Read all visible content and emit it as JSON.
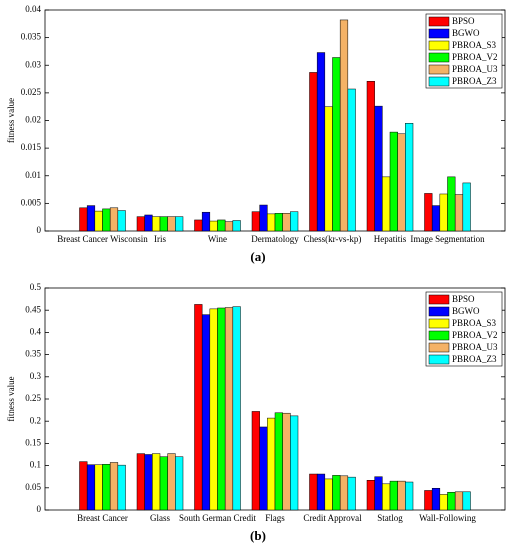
{
  "chart_data": [
    {
      "type": "bar",
      "caption": "(a)",
      "y_label": "fitness value",
      "legend": "upper right",
      "categories": [
        "Breast Cancer Wisconsin",
        "Iris",
        "Wine",
        "Dermatology",
        "Chess(kr-vs-kp)",
        "Hepatitis",
        "Image Segmentation"
      ],
      "ylim": [
        0,
        0.04
      ],
      "yticks": [
        0,
        0.005,
        0.01,
        0.015,
        0.02,
        0.025,
        0.03,
        0.035,
        0.04
      ],
      "series": [
        {
          "name": "BPSO",
          "color": "#ff0000",
          "values": [
            0.0042,
            0.0026,
            0.002,
            0.0035,
            0.0287,
            0.0271,
            0.0068
          ]
        },
        {
          "name": "BGWO",
          "color": "#0000ff",
          "values": [
            0.0046,
            0.0029,
            0.0034,
            0.0047,
            0.0323,
            0.0226,
            0.0046
          ]
        },
        {
          "name": "PBROA_S3",
          "color": "#ffff00",
          "values": [
            0.0036,
            0.0026,
            0.0018,
            0.0031,
            0.0225,
            0.0098,
            0.0067
          ]
        },
        {
          "name": "PBROA_V2",
          "color": "#00ff00",
          "values": [
            0.004,
            0.0026,
            0.002,
            0.0032,
            0.0314,
            0.0179,
            0.0098
          ]
        },
        {
          "name": "PBROA_U3",
          "color": "#f4b266",
          "values": [
            0.0042,
            0.0026,
            0.0017,
            0.0032,
            0.0382,
            0.0176,
            0.0066
          ]
        },
        {
          "name": "PBROA_Z3",
          "color": "#00ffff",
          "values": [
            0.0037,
            0.0026,
            0.0019,
            0.0035,
            0.0257,
            0.0195,
            0.0087
          ]
        }
      ]
    },
    {
      "type": "bar",
      "caption": "(b)",
      "y_label": "fitness value",
      "legend": "upper right",
      "categories": [
        "Breast Cancer",
        "Glass",
        "South German Credit",
        "Flags",
        "Credit Approval",
        "Statlog",
        "Wall-Following"
      ],
      "ylim": [
        0,
        0.5
      ],
      "yticks": [
        0,
        0.05,
        0.1,
        0.15,
        0.2,
        0.25,
        0.3,
        0.35,
        0.4,
        0.45,
        0.5
      ],
      "series": [
        {
          "name": "BPSO",
          "color": "#ff0000",
          "values": [
            0.109,
            0.127,
            0.463,
            0.222,
            0.081,
            0.067,
            0.044
          ]
        },
        {
          "name": "BGWO",
          "color": "#0000ff",
          "values": [
            0.102,
            0.125,
            0.44,
            0.187,
            0.081,
            0.075,
            0.049
          ]
        },
        {
          "name": "PBROA_S3",
          "color": "#ffff00",
          "values": [
            0.102,
            0.127,
            0.453,
            0.207,
            0.07,
            0.059,
            0.035
          ]
        },
        {
          "name": "PBROA_V2",
          "color": "#00ff00",
          "values": [
            0.103,
            0.12,
            0.455,
            0.219,
            0.078,
            0.065,
            0.04
          ]
        },
        {
          "name": "PBROA_U3",
          "color": "#f4b266",
          "values": [
            0.107,
            0.127,
            0.456,
            0.218,
            0.077,
            0.065,
            0.041
          ]
        },
        {
          "name": "PBROA_Z3",
          "color": "#00ffff",
          "values": [
            0.101,
            0.12,
            0.458,
            0.212,
            0.074,
            0.063,
            0.041
          ]
        }
      ]
    }
  ]
}
